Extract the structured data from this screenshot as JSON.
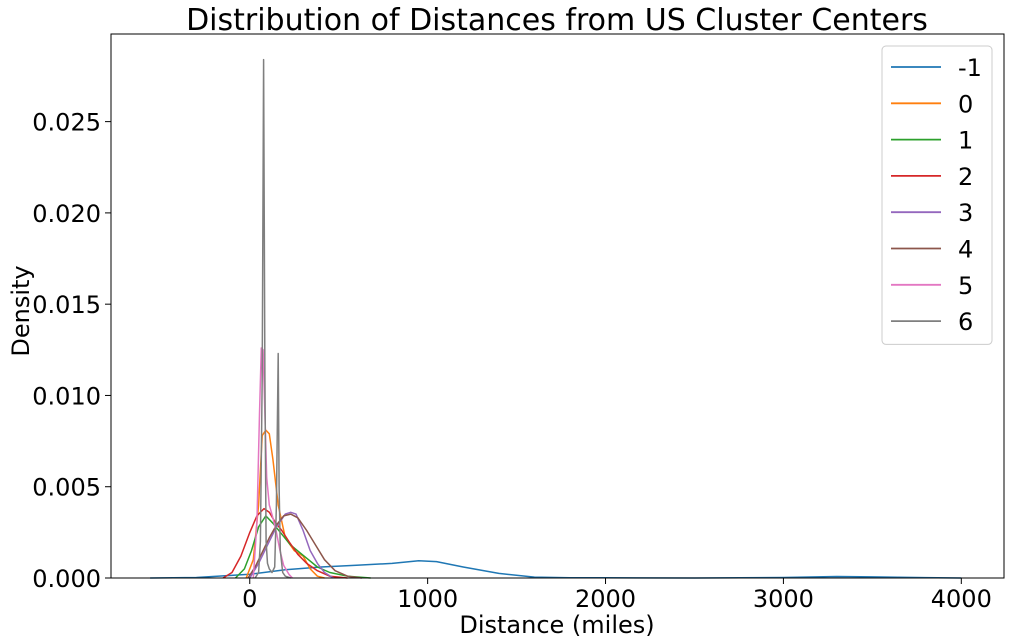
{
  "chart_data": {
    "type": "line",
    "title": "Distribution of Distances from US Cluster Centers",
    "xlabel": "Distance (miles)",
    "ylabel": "Density",
    "xlim": [
      -780,
      4240
    ],
    "ylim": [
      0,
      0.0298
    ],
    "xticks": [
      0,
      1000,
      2000,
      3000,
      4000
    ],
    "xtick_labels": [
      "0",
      "1000",
      "2000",
      "3000",
      "4000"
    ],
    "yticks": [
      0,
      0.005,
      0.01,
      0.015,
      0.02,
      0.025
    ],
    "ytick_labels": [
      "0.000",
      "0.005",
      "0.010",
      "0.015",
      "0.020",
      "0.025"
    ],
    "grid": false,
    "legend_position": "top-right",
    "series": [
      {
        "name": "-1",
        "color": "#1f77b4",
        "x": [
          -560,
          -300,
          0,
          200,
          400,
          600,
          800,
          950,
          1050,
          1200,
          1400,
          1600,
          1800,
          2000,
          2500,
          3000,
          3300,
          3500,
          3800,
          4000
        ],
        "y": [
          0,
          3e-05,
          0.0002,
          0.00045,
          0.0006,
          0.0007,
          0.0008,
          0.00095,
          0.0009,
          0.0006,
          0.00025,
          5e-05,
          1e-05,
          1e-05,
          0,
          3e-05,
          8e-05,
          6e-05,
          2e-05,
          0
        ]
      },
      {
        "name": "0",
        "color": "#ff7f0e",
        "x": [
          -20,
          20,
          50,
          70,
          90,
          110,
          130,
          160,
          200,
          250,
          300,
          340,
          380,
          420
        ],
        "y": [
          0,
          0.001,
          0.004,
          0.0078,
          0.0081,
          0.0079,
          0.0065,
          0.004,
          0.0022,
          0.0015,
          0.0012,
          0.0005,
          0.0001,
          0
        ]
      },
      {
        "name": "1",
        "color": "#2ca02c",
        "x": [
          -80,
          -30,
          10,
          50,
          90,
          130,
          180,
          230,
          280,
          330,
          380,
          450,
          550,
          680
        ],
        "y": [
          0,
          0.0005,
          0.0015,
          0.0028,
          0.0034,
          0.003,
          0.0024,
          0.0018,
          0.0014,
          0.001,
          0.0006,
          0.0003,
          0.0001,
          0
        ]
      },
      {
        "name": "2",
        "color": "#d62728",
        "x": [
          -150,
          -100,
          -50,
          0,
          40,
          80,
          110,
          140,
          180,
          220,
          270,
          320,
          380,
          450,
          550
        ],
        "y": [
          0,
          0.0003,
          0.0012,
          0.0025,
          0.0034,
          0.0038,
          0.0036,
          0.0031,
          0.0026,
          0.002,
          0.0013,
          0.0008,
          0.0004,
          0.0001,
          0
        ]
      },
      {
        "name": "3",
        "color": "#9467bd",
        "x": [
          0,
          50,
          100,
          150,
          200,
          230,
          260,
          300,
          340,
          380,
          420,
          470
        ],
        "y": [
          0,
          0.0008,
          0.0018,
          0.0028,
          0.0035,
          0.0036,
          0.0035,
          0.0026,
          0.0015,
          0.0008,
          0.0003,
          0
        ]
      },
      {
        "name": "4",
        "color": "#8c564b",
        "x": [
          -10,
          30,
          70,
          110,
          150,
          190,
          230,
          270,
          320,
          370,
          420,
          480,
          550,
          630
        ],
        "y": [
          0,
          0.0006,
          0.0014,
          0.0022,
          0.0029,
          0.0034,
          0.0035,
          0.0033,
          0.0026,
          0.0018,
          0.001,
          0.0004,
          0.0001,
          0
        ]
      },
      {
        "name": "5",
        "color": "#e377c2",
        "x": [
          20,
          40,
          55,
          65,
          75,
          85,
          95,
          110,
          130,
          150,
          170,
          190,
          220,
          240
        ],
        "y": [
          0,
          0.003,
          0.009,
          0.0126,
          0.0125,
          0.009,
          0.0055,
          0.004,
          0.0033,
          0.0025,
          0.0015,
          0.0007,
          0.0002,
          0
        ]
      },
      {
        "name": "6",
        "color": "#7f7f7f",
        "x": [
          30,
          50,
          60,
          70,
          78,
          85,
          92,
          100,
          110,
          125,
          140,
          150,
          160,
          165,
          172,
          185,
          200,
          230
        ],
        "y": [
          0,
          0.0003,
          0.002,
          0.011,
          0.0284,
          0.011,
          0.002,
          0.0008,
          0.0005,
          0.0003,
          0.0006,
          0.004,
          0.0123,
          0.005,
          0.0015,
          0.0003,
          0.0001,
          0
        ]
      }
    ]
  }
}
